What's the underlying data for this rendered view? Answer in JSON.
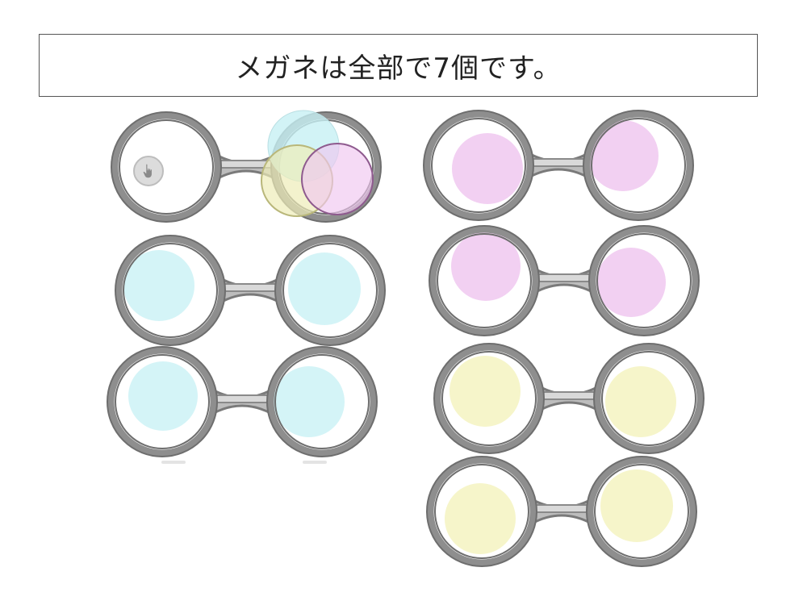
{
  "title": {
    "text": "メガネは全部で7個です。"
  },
  "colors": {
    "frame": "#8e8e8e",
    "frame_dark": "#6e6e6e",
    "lens_bg": "#ffffff",
    "cyan": "#d4f4f7",
    "pink": "#f2d0f2",
    "yellow": "#f6f5ca",
    "hand_icon_bg": "#dcdcdc"
  },
  "icons": {
    "pointer": "hand-pointer-icon"
  },
  "glasses": [
    {
      "id": "glasses-1",
      "left_fill": "none",
      "right_fill": "none"
    },
    {
      "id": "glasses-2",
      "left_fill": "cyan",
      "right_fill": "cyan"
    },
    {
      "id": "glasses-3",
      "left_fill": "cyan",
      "right_fill": "cyan"
    },
    {
      "id": "glasses-4",
      "left_fill": "pink",
      "right_fill": "pink"
    },
    {
      "id": "glasses-5",
      "left_fill": "pink",
      "right_fill": "pink"
    },
    {
      "id": "glasses-6",
      "left_fill": "yellow",
      "right_fill": "yellow"
    },
    {
      "id": "glasses-7",
      "left_fill": "yellow",
      "right_fill": "yellow"
    }
  ],
  "stray_circles": [
    {
      "id": "stray-cyan",
      "color": "cyan"
    },
    {
      "id": "stray-yellow",
      "color": "yellow"
    },
    {
      "id": "stray-pink",
      "color": "pink"
    }
  ]
}
